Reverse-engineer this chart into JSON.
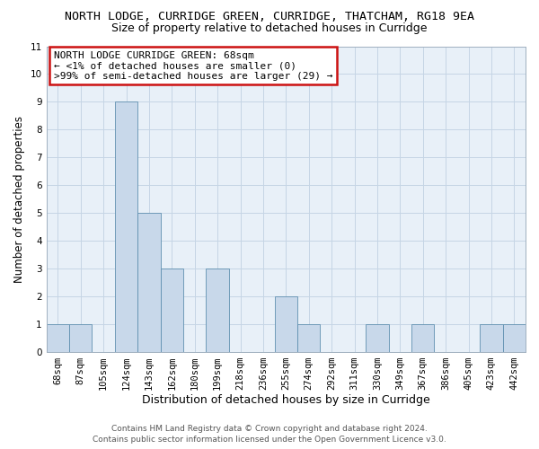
{
  "title": "NORTH LODGE, CURRIDGE GREEN, CURRIDGE, THATCHAM, RG18 9EA",
  "subtitle": "Size of property relative to detached houses in Curridge",
  "xlabel": "Distribution of detached houses by size in Curridge",
  "ylabel": "Number of detached properties",
  "categories": [
    "68sqm",
    "87sqm",
    "105sqm",
    "124sqm",
    "143sqm",
    "162sqm",
    "180sqm",
    "199sqm",
    "218sqm",
    "236sqm",
    "255sqm",
    "274sqm",
    "292sqm",
    "311sqm",
    "330sqm",
    "349sqm",
    "367sqm",
    "386sqm",
    "405sqm",
    "423sqm",
    "442sqm"
  ],
  "values": [
    1,
    1,
    0,
    9,
    5,
    3,
    0,
    3,
    0,
    0,
    2,
    1,
    0,
    0,
    1,
    0,
    1,
    0,
    0,
    1,
    1
  ],
  "bar_color": "#c8d8ea",
  "bar_edgecolor": "#6090b0",
  "ylim": [
    0,
    11
  ],
  "yticks": [
    0,
    1,
    2,
    3,
    4,
    5,
    6,
    7,
    8,
    9,
    10,
    11
  ],
  "grid_color": "#c5d5e5",
  "plot_bg_color": "#e8f0f8",
  "annotation_line1": "NORTH LODGE CURRIDGE GREEN: 68sqm",
  "annotation_line2": "← <1% of detached houses are smaller (0)",
  "annotation_line3": ">99% of semi-detached houses are larger (29) →",
  "annotation_box_edgecolor": "#cc1111",
  "footer_line1": "Contains HM Land Registry data © Crown copyright and database right 2024.",
  "footer_line2": "Contains public sector information licensed under the Open Government Licence v3.0.",
  "background_color": "#ffffff",
  "title_fontsize": 9.5,
  "subtitle_fontsize": 9,
  "xlabel_fontsize": 9,
  "ylabel_fontsize": 8.5,
  "tick_fontsize": 7.5,
  "annotation_fontsize": 8,
  "footer_fontsize": 6.5
}
